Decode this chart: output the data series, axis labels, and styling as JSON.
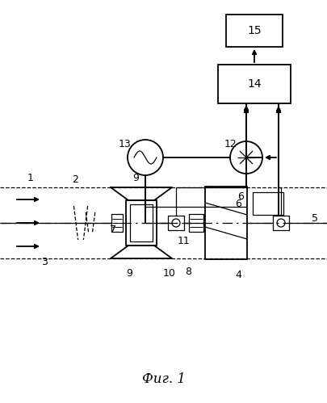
{
  "bg_color": "#ffffff",
  "line_color": "#000000",
  "fig_caption": "Фиг. 1"
}
